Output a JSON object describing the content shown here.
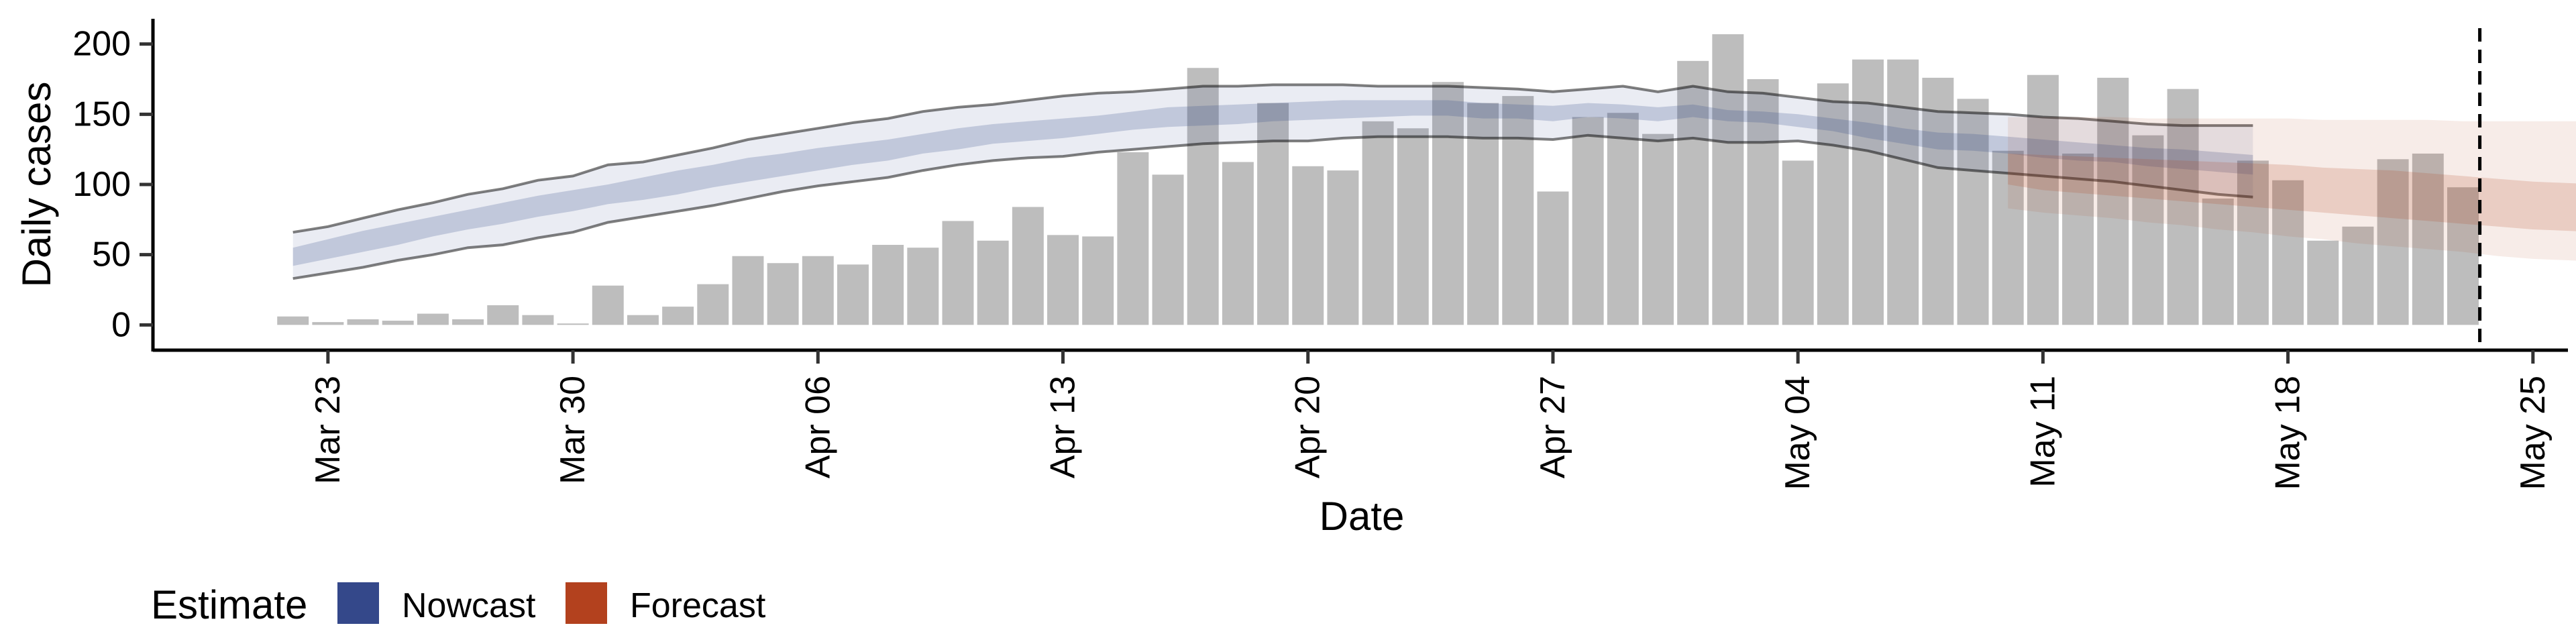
{
  "chart_data": {
    "type": "bar",
    "xlabel": "Date",
    "ylabel": "Daily cases",
    "ylim": [
      -18,
      218
    ],
    "xlim": [
      "2020-03-18",
      "2020-05-26"
    ],
    "x_ticks": [
      "2020-03-23",
      "2020-03-30",
      "2020-04-06",
      "2020-04-13",
      "2020-04-20",
      "2020-04-27",
      "2020-05-04",
      "2020-05-11",
      "2020-05-18",
      "2020-05-25"
    ],
    "x_tick_labels": [
      "Mar 23",
      "Mar 30",
      "Apr 06",
      "Apr 13",
      "Apr 20",
      "Apr 27",
      "May 04",
      "May 11",
      "May 18",
      "May 25"
    ],
    "y_ticks": [
      0,
      50,
      100,
      150,
      200
    ],
    "y_tick_labels": [
      "0",
      "50",
      "100",
      "150",
      "200"
    ],
    "grid": false,
    "vline_date": "2020-05-23",
    "bars": {
      "name": "Daily cases",
      "color": "#bdbdbd",
      "start_date": "2020-03-22",
      "values": [
        6,
        2,
        4,
        3,
        8,
        4,
        14,
        7,
        1,
        28,
        7,
        13,
        29,
        49,
        44,
        49,
        43,
        57,
        55,
        74,
        60,
        84,
        64,
        63,
        123,
        107,
        183,
        116,
        158,
        113,
        110,
        145,
        140,
        173,
        158,
        163,
        95,
        148,
        151,
        136,
        188,
        207,
        175,
        117,
        172,
        189,
        189,
        176,
        161,
        124,
        178,
        122,
        176,
        135,
        168,
        90,
        117,
        103,
        60,
        70,
        118,
        122,
        98
      ]
    },
    "series": [
      {
        "name": "Nowcast",
        "color": "#34488a",
        "start_date": "2020-03-22",
        "lower90": [
          33,
          37,
          41,
          46,
          50,
          55,
          57,
          62,
          66,
          73,
          77,
          81,
          85,
          90,
          95,
          99,
          102,
          105,
          110,
          114,
          117,
          119,
          120,
          123,
          125,
          127,
          129,
          130,
          131,
          131,
          133,
          134,
          134,
          134,
          133,
          133,
          132,
          135,
          133,
          131,
          133,
          130,
          130,
          131,
          128,
          124,
          118,
          112,
          110,
          108,
          106,
          104,
          102,
          99,
          96,
          93,
          91
        ],
        "lower50": [
          42,
          47,
          52,
          57,
          63,
          68,
          72,
          77,
          81,
          86,
          89,
          93,
          98,
          102,
          106,
          110,
          114,
          117,
          122,
          125,
          129,
          131,
          133,
          136,
          139,
          141,
          142,
          143,
          145,
          146,
          147,
          148,
          149,
          149,
          147,
          147,
          145,
          148,
          147,
          145,
          148,
          145,
          144,
          141,
          138,
          133,
          129,
          125,
          124,
          122,
          119,
          117,
          116,
          113,
          111,
          109,
          107
        ],
        "median": [
          48,
          54,
          59,
          64,
          69,
          74,
          79,
          84,
          88,
          93,
          97,
          102,
          106,
          111,
          115,
          119,
          122,
          125,
          129,
          132,
          136,
          138,
          140,
          143,
          146,
          148,
          149,
          150,
          152,
          152,
          153,
          154,
          154,
          154,
          152,
          152,
          150,
          152,
          151,
          149,
          152,
          149,
          148,
          145,
          142,
          138,
          134,
          131,
          130,
          128,
          125,
          123,
          122,
          120,
          118,
          116,
          114
        ],
        "upper50": [
          55,
          61,
          67,
          72,
          77,
          82,
          87,
          92,
          96,
          100,
          105,
          110,
          114,
          119,
          122,
          126,
          129,
          132,
          136,
          140,
          143,
          145,
          147,
          149,
          152,
          155,
          156,
          157,
          158,
          159,
          160,
          160,
          160,
          160,
          158,
          157,
          156,
          158,
          157,
          155,
          157,
          153,
          152,
          150,
          147,
          144,
          140,
          137,
          136,
          134,
          132,
          130,
          128,
          126,
          125,
          123,
          121
        ],
        "upper90": [
          66,
          70,
          76,
          82,
          87,
          93,
          97,
          103,
          106,
          114,
          116,
          121,
          126,
          132,
          136,
          140,
          144,
          147,
          152,
          155,
          157,
          160,
          163,
          165,
          166,
          168,
          170,
          170,
          171,
          171,
          171,
          170,
          170,
          170,
          169,
          168,
          166,
          168,
          170,
          166,
          170,
          166,
          165,
          162,
          159,
          158,
          155,
          152,
          151,
          150,
          148,
          147,
          145,
          143,
          142,
          142,
          142
        ]
      },
      {
        "name": "Forecast",
        "color": "#b3411e",
        "start_date": "2020-05-10",
        "lower90": [
          83,
          80,
          78,
          76,
          73,
          71,
          68,
          66,
          63,
          61,
          58,
          56,
          54,
          52,
          49,
          47,
          46,
          45,
          43,
          41,
          39,
          36,
          33,
          31
        ],
        "lower50": [
          100,
          96,
          94,
          92,
          90,
          88,
          86,
          84,
          82,
          80,
          78,
          76,
          74,
          72,
          70,
          68,
          67,
          66,
          64,
          62,
          60,
          58,
          56,
          55
        ],
        "median": [
          110,
          108,
          106,
          104,
          102,
          100,
          98,
          96,
          94,
          92,
          90,
          88,
          86,
          84,
          82,
          80,
          78,
          76,
          75,
          73,
          71,
          69,
          67,
          65
        ],
        "upper50": [
          122,
          121,
          120,
          119,
          118,
          117,
          116,
          115,
          114,
          112,
          111,
          110,
          108,
          106,
          104,
          102,
          101,
          100,
          99,
          98,
          97,
          96,
          95,
          94
        ],
        "upper90": [
          148,
          148,
          148,
          148,
          147,
          147,
          147,
          147,
          147,
          146,
          146,
          146,
          146,
          145,
          145,
          145,
          145,
          145,
          145,
          145,
          145,
          145,
          145,
          145
        ]
      }
    ],
    "legend": {
      "position": "bottom-left",
      "title": "Estimate",
      "items": [
        {
          "label": "Nowcast",
          "color": "#34488a"
        },
        {
          "label": "Forecast",
          "color": "#b3411e"
        }
      ]
    }
  }
}
